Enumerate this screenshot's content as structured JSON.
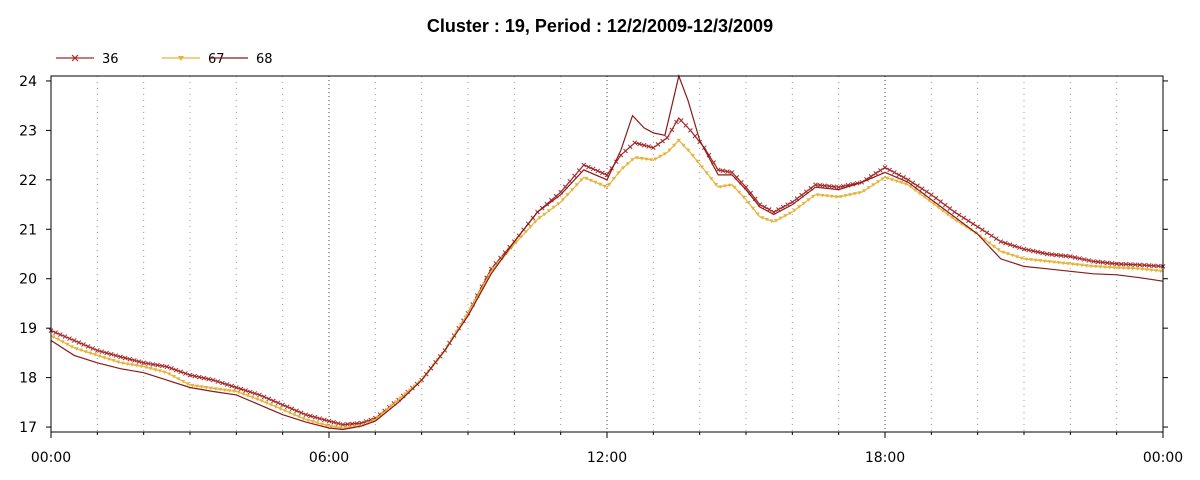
{
  "chart_data": {
    "type": "line",
    "title": "Cluster : 19, Period : 12/2/2009-12/3/2009",
    "xlabel": "",
    "ylabel": "",
    "x_ticks": [
      "00:00",
      "06:00",
      "12:00",
      "18:00",
      "00:00"
    ],
    "x_tick_hours": [
      0,
      6,
      12,
      18,
      24
    ],
    "xlim_hours": [
      0,
      24
    ],
    "y_ticks": [
      17,
      18,
      19,
      20,
      21,
      22,
      23,
      24
    ],
    "ylim": [
      16.9,
      24.1
    ],
    "grid": "dotted vertical",
    "legend_position": "top-left",
    "series": [
      {
        "name": "36",
        "color": "#a52a2a",
        "marker": "x",
        "points": [
          [
            0,
            18.95
          ],
          [
            0.5,
            18.75
          ],
          [
            1,
            18.55
          ],
          [
            1.5,
            18.42
          ],
          [
            2,
            18.3
          ],
          [
            2.5,
            18.22
          ],
          [
            3,
            18.05
          ],
          [
            3.5,
            17.95
          ],
          [
            4,
            17.8
          ],
          [
            4.5,
            17.65
          ],
          [
            5,
            17.45
          ],
          [
            5.5,
            17.25
          ],
          [
            6,
            17.12
          ],
          [
            6.3,
            17.05
          ],
          [
            6.7,
            17.08
          ],
          [
            7,
            17.18
          ],
          [
            7.5,
            17.55
          ],
          [
            8,
            17.95
          ],
          [
            8.5,
            18.55
          ],
          [
            9,
            19.3
          ],
          [
            9.5,
            20.2
          ],
          [
            10,
            20.75
          ],
          [
            10.5,
            21.35
          ],
          [
            11,
            21.75
          ],
          [
            11.5,
            22.3
          ],
          [
            12,
            22.1
          ],
          [
            12.3,
            22.5
          ],
          [
            12.6,
            22.75
          ],
          [
            13,
            22.65
          ],
          [
            13.3,
            22.85
          ],
          [
            13.55,
            23.25
          ],
          [
            13.8,
            23.0
          ],
          [
            14.1,
            22.65
          ],
          [
            14.4,
            22.2
          ],
          [
            14.7,
            22.15
          ],
          [
            15,
            21.85
          ],
          [
            15.3,
            21.5
          ],
          [
            15.6,
            21.35
          ],
          [
            16,
            21.55
          ],
          [
            16.5,
            21.9
          ],
          [
            17,
            21.85
          ],
          [
            17.5,
            21.95
          ],
          [
            18,
            22.25
          ],
          [
            18.5,
            22.0
          ],
          [
            19,
            21.7
          ],
          [
            19.5,
            21.35
          ],
          [
            20,
            21.05
          ],
          [
            20.5,
            20.75
          ],
          [
            21,
            20.6
          ],
          [
            21.5,
            20.5
          ],
          [
            22,
            20.45
          ],
          [
            22.5,
            20.35
          ],
          [
            23,
            20.3
          ],
          [
            23.5,
            20.28
          ],
          [
            24,
            20.25
          ]
        ]
      },
      {
        "name": "67",
        "color": "#e6b43c",
        "marker": "triangle",
        "points": [
          [
            0,
            18.85
          ],
          [
            0.5,
            18.6
          ],
          [
            1,
            18.45
          ],
          [
            1.5,
            18.3
          ],
          [
            2,
            18.22
          ],
          [
            2.5,
            18.1
          ],
          [
            3,
            17.85
          ],
          [
            3.5,
            17.78
          ],
          [
            4,
            17.72
          ],
          [
            4.5,
            17.55
          ],
          [
            5,
            17.35
          ],
          [
            5.5,
            17.15
          ],
          [
            6,
            17.02
          ],
          [
            6.3,
            16.98
          ],
          [
            6.7,
            17.02
          ],
          [
            7,
            17.15
          ],
          [
            7.5,
            17.55
          ],
          [
            8,
            17.95
          ],
          [
            8.5,
            18.55
          ],
          [
            9,
            19.3
          ],
          [
            9.5,
            20.15
          ],
          [
            10,
            20.7
          ],
          [
            10.5,
            21.2
          ],
          [
            11,
            21.55
          ],
          [
            11.5,
            22.05
          ],
          [
            12,
            21.85
          ],
          [
            12.3,
            22.2
          ],
          [
            12.6,
            22.45
          ],
          [
            13,
            22.4
          ],
          [
            13.3,
            22.55
          ],
          [
            13.55,
            22.8
          ],
          [
            13.8,
            22.55
          ],
          [
            14.1,
            22.2
          ],
          [
            14.4,
            21.85
          ],
          [
            14.7,
            21.9
          ],
          [
            15,
            21.6
          ],
          [
            15.3,
            21.25
          ],
          [
            15.6,
            21.15
          ],
          [
            16,
            21.35
          ],
          [
            16.5,
            21.7
          ],
          [
            17,
            21.65
          ],
          [
            17.5,
            21.75
          ],
          [
            18,
            22.05
          ],
          [
            18.5,
            21.9
          ],
          [
            19,
            21.55
          ],
          [
            19.5,
            21.2
          ],
          [
            20,
            20.9
          ],
          [
            20.5,
            20.55
          ],
          [
            21,
            20.4
          ],
          [
            21.5,
            20.35
          ],
          [
            22,
            20.3
          ],
          [
            22.5,
            20.25
          ],
          [
            23,
            20.22
          ],
          [
            23.5,
            20.2
          ],
          [
            24,
            20.15
          ]
        ]
      },
      {
        "name": "68",
        "color": "#8b1a1a",
        "marker": "none",
        "points": [
          [
            0,
            18.75
          ],
          [
            0.5,
            18.45
          ],
          [
            1,
            18.3
          ],
          [
            1.5,
            18.18
          ],
          [
            2,
            18.1
          ],
          [
            2.5,
            17.95
          ],
          [
            3,
            17.8
          ],
          [
            3.5,
            17.72
          ],
          [
            4,
            17.65
          ],
          [
            4.5,
            17.45
          ],
          [
            5,
            17.25
          ],
          [
            5.5,
            17.1
          ],
          [
            6,
            16.98
          ],
          [
            6.3,
            16.95
          ],
          [
            6.7,
            17.02
          ],
          [
            7,
            17.12
          ],
          [
            7.5,
            17.5
          ],
          [
            8,
            17.95
          ],
          [
            8.5,
            18.55
          ],
          [
            9,
            19.25
          ],
          [
            9.5,
            20.1
          ],
          [
            10,
            20.75
          ],
          [
            10.5,
            21.35
          ],
          [
            11,
            21.7
          ],
          [
            11.5,
            22.2
          ],
          [
            12,
            22.0
          ],
          [
            12.3,
            22.6
          ],
          [
            12.55,
            23.3
          ],
          [
            12.8,
            23.05
          ],
          [
            13,
            22.95
          ],
          [
            13.25,
            22.9
          ],
          [
            13.45,
            23.7
          ],
          [
            13.55,
            24.1
          ],
          [
            13.75,
            23.6
          ],
          [
            14.0,
            22.8
          ],
          [
            14.4,
            22.1
          ],
          [
            14.7,
            22.1
          ],
          [
            15,
            21.8
          ],
          [
            15.3,
            21.45
          ],
          [
            15.6,
            21.3
          ],
          [
            16,
            21.5
          ],
          [
            16.5,
            21.85
          ],
          [
            17,
            21.8
          ],
          [
            17.5,
            21.95
          ],
          [
            18,
            22.15
          ],
          [
            18.5,
            21.95
          ],
          [
            19,
            21.6
          ],
          [
            19.5,
            21.25
          ],
          [
            20,
            20.9
          ],
          [
            20.5,
            20.4
          ],
          [
            21,
            20.25
          ],
          [
            21.5,
            20.2
          ],
          [
            22,
            20.15
          ],
          [
            22.5,
            20.1
          ],
          [
            23,
            20.08
          ],
          [
            23.5,
            20.02
          ],
          [
            24,
            19.95
          ]
        ]
      }
    ]
  }
}
